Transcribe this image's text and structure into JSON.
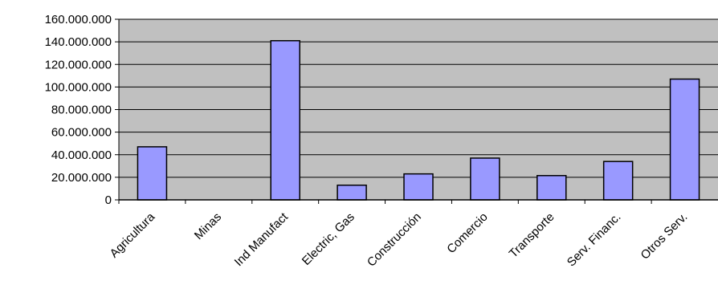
{
  "chart_data": {
    "type": "bar",
    "title": "",
    "xlabel": "",
    "ylabel": "",
    "categories": [
      "Agricultura",
      "Minas",
      "Ind Manufact",
      "Electric, Gas",
      "Construcción",
      "Comercio",
      "Transporte",
      "Serv. Financ.",
      "Otros Serv."
    ],
    "values": [
      47000000,
      0,
      141000000,
      13000000,
      23000000,
      37000000,
      21500000,
      34000000,
      107000000
    ],
    "ylim": [
      0,
      160000000
    ],
    "yticks": [
      "0",
      "20.000.000",
      "40.000.000",
      "60.000.000",
      "80.000.000",
      "100.000.000",
      "120.000.000",
      "140.000.000",
      "160.000.000"
    ],
    "grid": true,
    "legend": "none",
    "colors": {
      "plot_background": "#c0c0c0",
      "bar_fill": "#9999ff",
      "bar_stroke": "#000000",
      "gridline": "#000000"
    }
  }
}
